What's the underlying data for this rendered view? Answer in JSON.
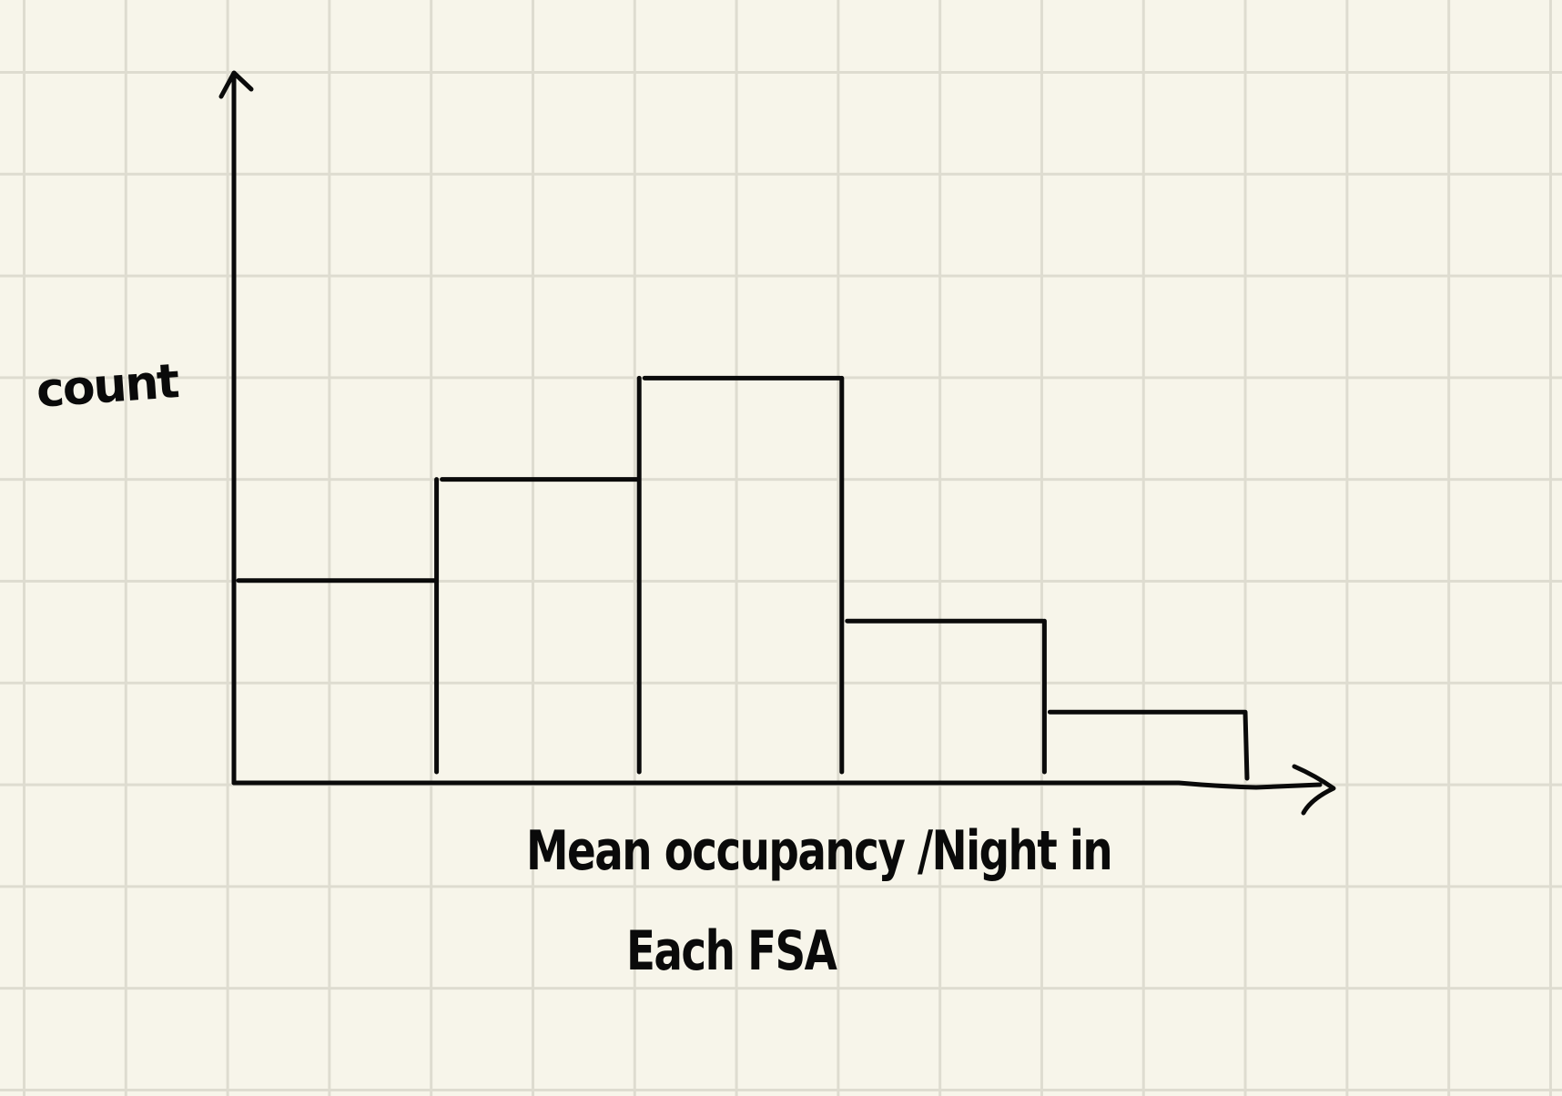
{
  "chart_data": {
    "type": "bar",
    "categories": [
      "",
      "",
      "",
      "",
      ""
    ],
    "values": [
      2.0,
      3.0,
      4.0,
      1.6,
      0.7
    ],
    "xlabel_lines": [
      "Mean occupancy /Night  in",
      "Each FSA"
    ],
    "ylabel": "count",
    "ylim": [
      0,
      7
    ],
    "grid": true,
    "legend": "none"
  }
}
